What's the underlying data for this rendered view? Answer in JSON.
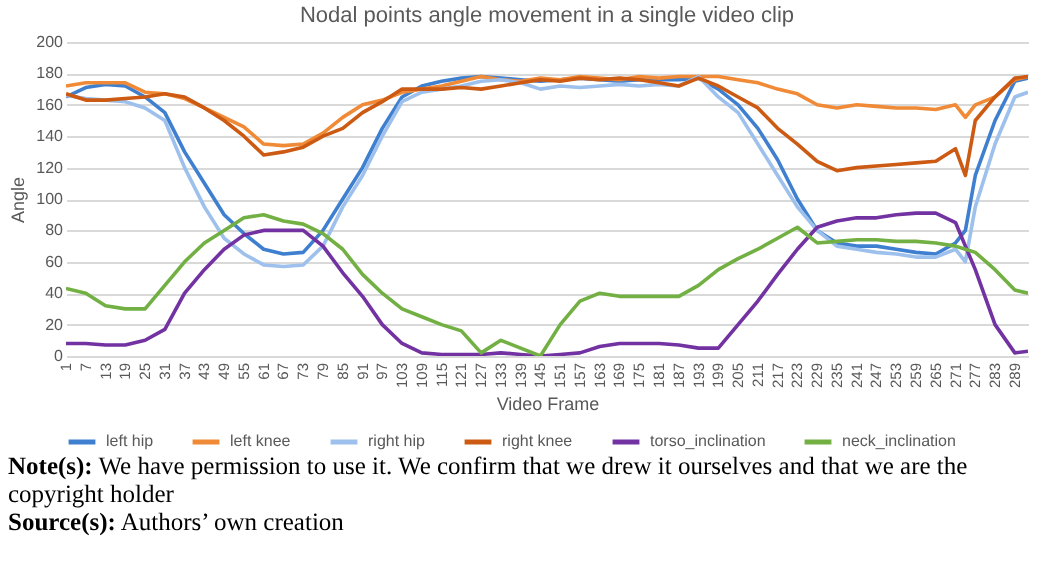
{
  "chart_data": {
    "type": "line",
    "title": "Nodal points angle movement in a single video clip",
    "xlabel": "Video Frame",
    "ylabel": "Angle",
    "x": [
      1,
      7,
      13,
      19,
      25,
      31,
      37,
      43,
      49,
      55,
      61,
      67,
      73,
      79,
      85,
      91,
      97,
      103,
      109,
      115,
      121,
      127,
      133,
      139,
      145,
      151,
      157,
      163,
      169,
      175,
      181,
      187,
      193,
      199,
      205,
      211,
      217,
      223,
      229,
      235,
      241,
      247,
      253,
      259,
      265,
      271,
      274,
      277,
      283,
      289,
      293
    ],
    "xlim": [
      1,
      293
    ],
    "xticks": [
      1,
      7,
      13,
      19,
      25,
      31,
      37,
      43,
      49,
      55,
      61,
      67,
      73,
      79,
      85,
      91,
      97,
      103,
      109,
      115,
      121,
      127,
      133,
      139,
      145,
      151,
      157,
      163,
      169,
      175,
      181,
      187,
      193,
      199,
      205,
      211,
      217,
      223,
      229,
      235,
      241,
      247,
      253,
      259,
      265,
      271,
      277,
      283,
      289
    ],
    "ylim": [
      0,
      200
    ],
    "yticks": [
      0,
      20,
      40,
      60,
      80,
      100,
      120,
      140,
      160,
      180,
      200
    ],
    "grid": "y",
    "legend": "bottom",
    "marker": "none",
    "line_style": "solid",
    "series": [
      {
        "name": "left hip",
        "color": "#3f7fcf",
        "values": [
          165,
          171,
          173,
          172,
          165,
          155,
          130,
          110,
          90,
          78,
          68,
          65,
          66,
          80,
          100,
          120,
          145,
          165,
          172,
          175,
          177,
          178,
          177,
          176,
          175,
          176,
          177,
          176,
          175,
          176,
          176,
          176,
          177,
          170,
          160,
          145,
          125,
          100,
          80,
          72,
          70,
          70,
          68,
          66,
          65,
          72,
          80,
          115,
          150,
          175,
          177
        ]
      },
      {
        "name": "left knee",
        "color": "#f08a36",
        "values": [
          172,
          174,
          174,
          174,
          168,
          167,
          164,
          158,
          152,
          146,
          135,
          134,
          135,
          142,
          152,
          160,
          163,
          168,
          170,
          172,
          175,
          178,
          176,
          175,
          177,
          176,
          178,
          177,
          176,
          178,
          177,
          178,
          178,
          178,
          176,
          174,
          170,
          167,
          160,
          158,
          160,
          159,
          158,
          158,
          157,
          160,
          152,
          160,
          165,
          176,
          178
        ]
      },
      {
        "name": "right hip",
        "color": "#9dc0ec",
        "values": [
          166,
          164,
          163,
          162,
          158,
          150,
          120,
          95,
          75,
          65,
          58,
          57,
          58,
          70,
          95,
          115,
          140,
          162,
          168,
          170,
          172,
          175,
          176,
          174,
          170,
          172,
          171,
          172,
          173,
          172,
          173,
          172,
          178,
          165,
          155,
          135,
          115,
          95,
          80,
          70,
          68,
          66,
          65,
          63,
          63,
          68,
          60,
          95,
          135,
          165,
          168
        ]
      },
      {
        "name": "right knee",
        "color": "#cc5a12",
        "values": [
          167,
          163,
          163,
          164,
          165,
          167,
          165,
          158,
          150,
          140,
          128,
          130,
          133,
          140,
          145,
          155,
          162,
          170,
          170,
          170,
          171,
          170,
          172,
          174,
          176,
          175,
          177,
          176,
          177,
          176,
          174,
          172,
          177,
          172,
          165,
          158,
          145,
          135,
          124,
          118,
          120,
          121,
          122,
          123,
          124,
          132,
          115,
          150,
          165,
          177,
          178
        ]
      },
      {
        "name": "torso_inclination",
        "color": "#7232a2",
        "values": [
          8,
          8,
          7,
          7,
          10,
          17,
          40,
          55,
          68,
          77,
          80,
          80,
          80,
          70,
          53,
          38,
          20,
          8,
          2,
          1,
          1,
          1,
          2,
          1,
          0,
          1,
          2,
          6,
          8,
          8,
          8,
          7,
          5,
          5,
          20,
          35,
          52,
          68,
          82,
          86,
          88,
          88,
          90,
          91,
          91,
          85,
          70,
          55,
          20,
          2,
          3
        ]
      },
      {
        "name": "neck_inclination",
        "color": "#72b043",
        "values": [
          43,
          40,
          32,
          30,
          30,
          45,
          60,
          72,
          80,
          88,
          90,
          86,
          84,
          78,
          68,
          52,
          40,
          30,
          25,
          20,
          16,
          2,
          10,
          5,
          0,
          20,
          35,
          40,
          38,
          38,
          38,
          38,
          45,
          55,
          62,
          68,
          75,
          82,
          72,
          73,
          74,
          74,
          73,
          73,
          72,
          70,
          68,
          66,
          55,
          42,
          40
        ]
      }
    ],
    "annotations": [
      "Note(s): We have permission to use it. We confirm that we drew it ourselves and that we are the copyright holder",
      "Source(s): Authors’ own creation"
    ]
  }
}
